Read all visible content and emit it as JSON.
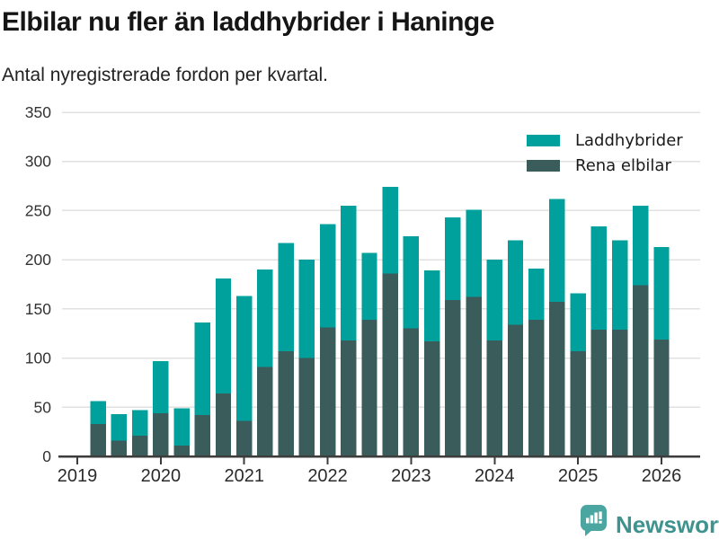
{
  "header": {
    "title": "Elbilar nu fler än laddhybrider i Haninge",
    "subtitle": "Antal nyregistrerade fordon per kvartal."
  },
  "legend": {
    "items": [
      {
        "label": "Laddhybrider",
        "color": "#00A19C"
      },
      {
        "label": "Rena elbilar",
        "color": "#3A5C5B"
      }
    ]
  },
  "footer": {
    "brand": "Newsworthy",
    "brand_color": "#3E938F",
    "icon": "newsworthy-speech-bubble-chart-icon",
    "icon_color": "#4BA6A1"
  },
  "colors": {
    "grid": "#E1E1E1",
    "axis": "#3C3C3C",
    "tick_text": "#333333",
    "background": "#FFFFFF"
  },
  "chart_data": {
    "type": "bar",
    "stacked": true,
    "title": "Elbilar nu fler än laddhybrider i Haninge",
    "subtitle": "Antal nyregistrerade fordon per kvartal.",
    "x": [
      "2019 Q1",
      "2019 Q2",
      "2019 Q3",
      "2019 Q4",
      "2020 Q1",
      "2020 Q2",
      "2020 Q3",
      "2020 Q4",
      "2021 Q1",
      "2021 Q2",
      "2021 Q3",
      "2021 Q4",
      "2022 Q1",
      "2022 Q2",
      "2022 Q3",
      "2022 Q4",
      "2023 Q1",
      "2023 Q2",
      "2023 Q3",
      "2023 Q4",
      "2024 Q1",
      "2024 Q2",
      "2024 Q3",
      "2024 Q4",
      "2025 Q1",
      "2025 Q2",
      "2025 Q3",
      "2025 Q4"
    ],
    "series": [
      {
        "name": "Rena elbilar",
        "color": "#3A5C5B",
        "values": [
          33,
          16,
          21,
          44,
          11,
          42,
          64,
          36,
          91,
          107,
          100,
          131,
          118,
          139,
          186,
          130,
          117,
          159,
          162,
          118,
          134,
          139,
          157,
          107,
          129,
          129,
          174,
          119
        ]
      },
      {
        "name": "Laddhybrider",
        "color": "#00A19C",
        "values": [
          23,
          27,
          26,
          53,
          38,
          94,
          117,
          127,
          99,
          110,
          100,
          105,
          137,
          68,
          88,
          94,
          72,
          84,
          89,
          82,
          86,
          52,
          105,
          59,
          105,
          91,
          81,
          94
        ]
      }
    ],
    "totals": [
      56,
      43,
      47,
      97,
      49,
      136,
      181,
      163,
      190,
      217,
      200,
      236,
      255,
      207,
      274,
      224,
      189,
      243,
      251,
      200,
      220,
      191,
      262,
      166,
      234,
      220,
      255,
      213
    ],
    "stack_order": [
      "Rena elbilar",
      "Laddhybrider"
    ],
    "x_tick_labels": [
      "2019",
      "2020",
      "2021",
      "2022",
      "2023",
      "2024",
      "2025",
      "2026"
    ],
    "y_ticks": [
      0,
      50,
      100,
      150,
      200,
      250,
      300,
      350
    ],
    "ylim": [
      0,
      350
    ],
    "grid": true,
    "legend_position": "top-right"
  }
}
